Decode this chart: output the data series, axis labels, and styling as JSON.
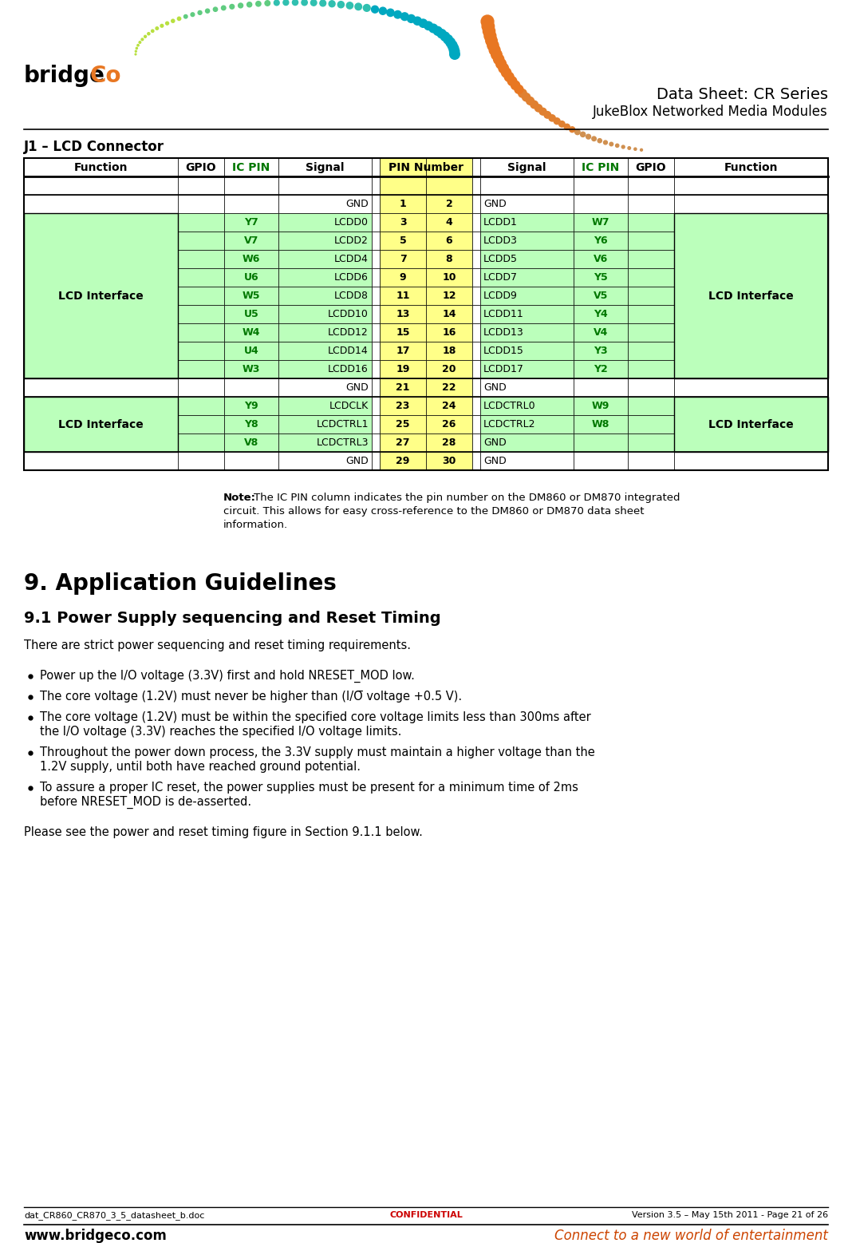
{
  "title_line1": "Data Sheet: CR Series",
  "title_line2": "JukeBlox Networked Media Modules",
  "section_title": "J1 – LCD Connector",
  "section9_title": "9. Application Guidelines",
  "section91_title": "9.1 Power Supply sequencing and Reset Timing",
  "section91_body": "There are strict power sequencing and reset timing requirements.",
  "bullets": [
    "Power up the I/O voltage (3.3V) first and hold NRESET_MOD low.",
    "The core voltage (1.2V) must never be higher than (I/O voltage +0.5 V).",
    "The core voltage (1.2V) must be within the specified core voltage limits less than 300ms after the I/O voltage (3.3V) reaches the specified I/O voltage limits.",
    "Throughout the power down process, the 3.3V supply must maintain a higher voltage than the 1.2V supply, until both have reached ground potential.",
    "To assure a proper IC reset, the power supplies must be present for a minimum time of 2ms before NRESET_MOD is de-asserted."
  ],
  "please_see_text": "Please see the power and reset timing figure in Section 9.1.1 below.",
  "note_bold": "Note:",
  "note_rest": " The IC PIN column indicates the pin number on the DM860 or DM870 integrated circuit. This allows for easy cross-reference to the DM860 or DM870 data sheet information.",
  "footer_left": "dat_CR860_CR870_3_5_datasheet_b.doc",
  "footer_center": "CONFIDENTIAL",
  "footer_right": "Version 3.5 – May 15th 2011 - Page 21 of 26",
  "footer_bottom_left": "www.bridgeco.com",
  "footer_bottom_right": "Connect to a new world of entertainment",
  "rows": [
    {
      "icpin_l": "",
      "sig_l": "GND",
      "pin_l": "1",
      "pin_r": "2",
      "sig_r": "GND",
      "icpin_r": "",
      "type": "gnd"
    },
    {
      "icpin_l": "Y7",
      "sig_l": "LCDD0",
      "pin_l": "3",
      "pin_r": "4",
      "sig_r": "LCDD1",
      "icpin_r": "W7",
      "type": "lcd1"
    },
    {
      "icpin_l": "V7",
      "sig_l": "LCDD2",
      "pin_l": "5",
      "pin_r": "6",
      "sig_r": "LCDD3",
      "icpin_r": "Y6",
      "type": "lcd1"
    },
    {
      "icpin_l": "W6",
      "sig_l": "LCDD4",
      "pin_l": "7",
      "pin_r": "8",
      "sig_r": "LCDD5",
      "icpin_r": "V6",
      "type": "lcd1"
    },
    {
      "icpin_l": "U6",
      "sig_l": "LCDD6",
      "pin_l": "9",
      "pin_r": "10",
      "sig_r": "LCDD7",
      "icpin_r": "Y5",
      "type": "lcd1"
    },
    {
      "icpin_l": "W5",
      "sig_l": "LCDD8",
      "pin_l": "11",
      "pin_r": "12",
      "sig_r": "LCDD9",
      "icpin_r": "V5",
      "type": "lcd1"
    },
    {
      "icpin_l": "U5",
      "sig_l": "LCDD10",
      "pin_l": "13",
      "pin_r": "14",
      "sig_r": "LCDD11",
      "icpin_r": "Y4",
      "type": "lcd1"
    },
    {
      "icpin_l": "W4",
      "sig_l": "LCDD12",
      "pin_l": "15",
      "pin_r": "16",
      "sig_r": "LCDD13",
      "icpin_r": "V4",
      "type": "lcd1"
    },
    {
      "icpin_l": "U4",
      "sig_l": "LCDD14",
      "pin_l": "17",
      "pin_r": "18",
      "sig_r": "LCDD15",
      "icpin_r": "Y3",
      "type": "lcd1"
    },
    {
      "icpin_l": "W3",
      "sig_l": "LCDD16",
      "pin_l": "19",
      "pin_r": "20",
      "sig_r": "LCDD17",
      "icpin_r": "Y2",
      "type": "lcd1"
    },
    {
      "icpin_l": "",
      "sig_l": "GND",
      "pin_l": "21",
      "pin_r": "22",
      "sig_r": "GND",
      "icpin_r": "",
      "type": "gnd"
    },
    {
      "icpin_l": "Y9",
      "sig_l": "LCDCLK",
      "pin_l": "23",
      "pin_r": "24",
      "sig_r": "LCDCTRL0",
      "icpin_r": "W9",
      "type": "lcd2"
    },
    {
      "icpin_l": "Y8",
      "sig_l": "LCDCTRL1",
      "pin_l": "25",
      "pin_r": "26",
      "sig_r": "LCDCTRL2",
      "icpin_r": "W8",
      "type": "lcd2"
    },
    {
      "icpin_l": "V8",
      "sig_l": "LCDCTRL3",
      "pin_l": "27",
      "pin_r": "28",
      "sig_r": "GND",
      "icpin_r": "",
      "type": "lcd2"
    },
    {
      "icpin_l": "",
      "sig_l": "GND",
      "pin_l": "29",
      "pin_r": "30",
      "sig_r": "GND",
      "icpin_r": "",
      "type": "gnd"
    }
  ],
  "c_light_green": "#bbffbb",
  "c_yellow": "#ffff88",
  "c_white": "#ffffff",
  "c_black": "#000000",
  "c_green_hdr": "#007700",
  "c_orange": "#e87722",
  "c_teal": "#00b0b0",
  "c_green_light2": "#90ee90",
  "c_brown_orange": "#cc7733"
}
